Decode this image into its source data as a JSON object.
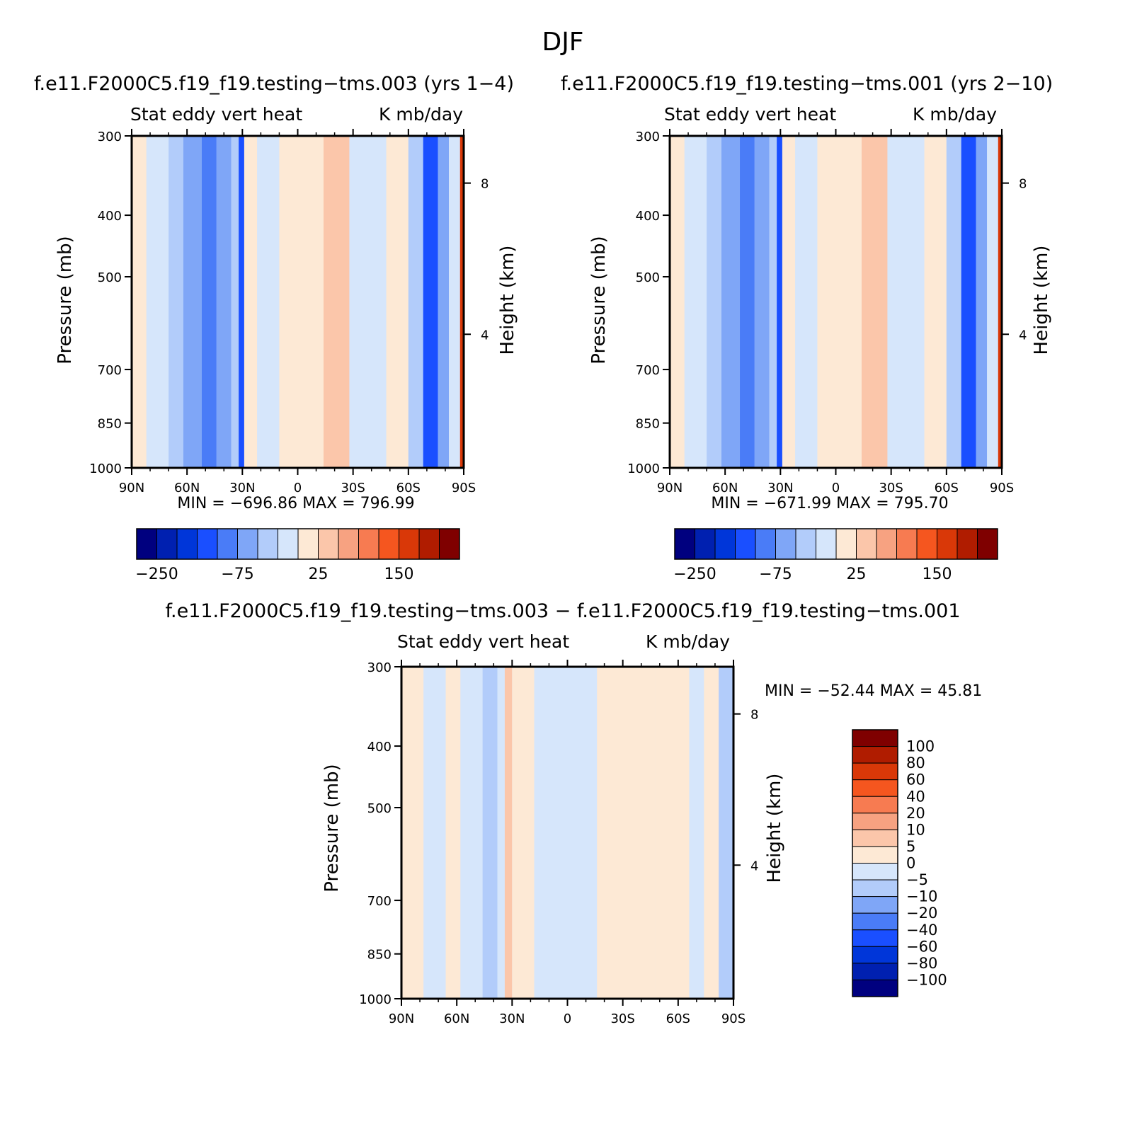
{
  "figure": {
    "title": "DJF"
  },
  "colors": {
    "scale": [
      "#00007f",
      "#0020b0",
      "#0036d9",
      "#1a4fff",
      "#4a7cf7",
      "#7fa6f7",
      "#b2ccfa",
      "#d6e6fb",
      "#fde9d5",
      "#fbc6aa",
      "#f7a281",
      "#f77b51",
      "#f5561f",
      "#d93808",
      "#b01c00",
      "#7f0000"
    ],
    "frame": "#000000",
    "missing": "#ffffff"
  },
  "chart_data": [
    {
      "type": "heatmap",
      "title": "f.e11.F2000C5.f19_f19.testing−tms.003 (yrs 1−4)",
      "subtitle_left": "Stat eddy vert heat",
      "subtitle_right": "K mb/day",
      "ylabel": "Pressure (mb)",
      "ylabel_right": "Height (km)",
      "xticklabels": [
        "90N",
        "60N",
        "30N",
        "0",
        "30S",
        "60S",
        "90S"
      ],
      "yticklabels": [
        "300",
        "400",
        "500",
        "700",
        "850",
        "1000"
      ],
      "yticklabels_right": [
        "8",
        "4"
      ],
      "stats": "MIN = −696.86   MAX = 796.99",
      "colorbar_labels": [
        "−250",
        "−75",
        "25",
        "150"
      ],
      "x_range": [
        90,
        -90
      ],
      "y_range": [
        300,
        1000
      ],
      "y_scale": "log-pressure",
      "structure": [
        {
          "lat_from": 90,
          "lat_to": 82,
          "level": 8
        },
        {
          "lat_from": 82,
          "lat_to": 70,
          "level": 7
        },
        {
          "lat_from": 70,
          "lat_to": 62,
          "level": 6
        },
        {
          "lat_from": 62,
          "lat_to": 52,
          "level": 5
        },
        {
          "lat_from": 52,
          "lat_to": 44,
          "level": 4
        },
        {
          "lat_from": 44,
          "lat_to": 36,
          "level": 5
        },
        {
          "lat_from": 36,
          "lat_to": 32,
          "level": 6
        },
        {
          "lat_from": 32,
          "lat_to": 29,
          "level": 3
        },
        {
          "lat_from": 29,
          "lat_to": 22,
          "level": 8
        },
        {
          "lat_from": 22,
          "lat_to": 10,
          "level": 7
        },
        {
          "lat_from": 10,
          "lat_to": -14,
          "level": 8
        },
        {
          "lat_from": -14,
          "lat_to": -28,
          "level": 9
        },
        {
          "lat_from": -28,
          "lat_to": -48,
          "level": 7
        },
        {
          "lat_from": -48,
          "lat_to": -60,
          "level": 8
        },
        {
          "lat_from": -60,
          "lat_to": -68,
          "level": 6
        },
        {
          "lat_from": -68,
          "lat_to": -76,
          "level": 3
        },
        {
          "lat_from": -76,
          "lat_to": -82,
          "level": 5
        },
        {
          "lat_from": -82,
          "lat_to": -88,
          "level": 7
        },
        {
          "lat_from": -88,
          "lat_to": -90,
          "level": 13
        }
      ]
    },
    {
      "type": "heatmap",
      "title": "f.e11.F2000C5.f19_f19.testing−tms.001 (yrs 2−10)",
      "subtitle_left": "Stat eddy vert heat",
      "subtitle_right": "K mb/day",
      "ylabel": "Pressure (mb)",
      "ylabel_right": "Height (km)",
      "xticklabels": [
        "90N",
        "60N",
        "30N",
        "0",
        "30S",
        "60S",
        "90S"
      ],
      "yticklabels": [
        "300",
        "400",
        "500",
        "700",
        "850",
        "1000"
      ],
      "yticklabels_right": [
        "8",
        "4"
      ],
      "stats": "MIN = −671.99   MAX = 795.70",
      "colorbar_labels": [
        "−250",
        "−75",
        "25",
        "150"
      ],
      "x_range": [
        90,
        -90
      ],
      "y_range": [
        300,
        1000
      ],
      "y_scale": "log-pressure",
      "structure": [
        {
          "lat_from": 90,
          "lat_to": 82,
          "level": 8
        },
        {
          "lat_from": 82,
          "lat_to": 70,
          "level": 7
        },
        {
          "lat_from": 70,
          "lat_to": 62,
          "level": 6
        },
        {
          "lat_from": 62,
          "lat_to": 52,
          "level": 5
        },
        {
          "lat_from": 52,
          "lat_to": 44,
          "level": 4
        },
        {
          "lat_from": 44,
          "lat_to": 36,
          "level": 5
        },
        {
          "lat_from": 36,
          "lat_to": 32,
          "level": 6
        },
        {
          "lat_from": 32,
          "lat_to": 29,
          "level": 3
        },
        {
          "lat_from": 29,
          "lat_to": 22,
          "level": 8
        },
        {
          "lat_from": 22,
          "lat_to": 10,
          "level": 7
        },
        {
          "lat_from": 10,
          "lat_to": -14,
          "level": 8
        },
        {
          "lat_from": -14,
          "lat_to": -28,
          "level": 9
        },
        {
          "lat_from": -28,
          "lat_to": -48,
          "level": 7
        },
        {
          "lat_from": -48,
          "lat_to": -60,
          "level": 8
        },
        {
          "lat_from": -60,
          "lat_to": -68,
          "level": 6
        },
        {
          "lat_from": -68,
          "lat_to": -76,
          "level": 3
        },
        {
          "lat_from": -76,
          "lat_to": -82,
          "level": 5
        },
        {
          "lat_from": -82,
          "lat_to": -88,
          "level": 7
        },
        {
          "lat_from": -88,
          "lat_to": -90,
          "level": 13
        }
      ]
    },
    {
      "type": "heatmap",
      "title": "f.e11.F2000C5.f19_f19.testing−tms.003 − f.e11.F2000C5.f19_f19.testing−tms.001",
      "subtitle_left": "Stat eddy vert heat",
      "subtitle_right": "K mb/day",
      "ylabel": "Pressure (mb)",
      "ylabel_right": "Height (km)",
      "xticklabels": [
        "90N",
        "60N",
        "30N",
        "0",
        "30S",
        "60S",
        "90S"
      ],
      "yticklabels": [
        "300",
        "400",
        "500",
        "700",
        "850",
        "1000"
      ],
      "yticklabels_right": [
        "8",
        "4"
      ],
      "stats": "MIN = −52.44   MAX =   45.81",
      "colorbar_labels": [
        "100",
        "80",
        "60",
        "40",
        "20",
        "10",
        "5",
        "0",
        "−5",
        "−10",
        "−20",
        "−40",
        "−60",
        "−80",
        "−100"
      ],
      "x_range": [
        90,
        -90
      ],
      "y_range": [
        300,
        1000
      ],
      "y_scale": "log-pressure",
      "structure": [
        {
          "lat_from": 90,
          "lat_to": 78,
          "level": 8
        },
        {
          "lat_from": 78,
          "lat_to": 66,
          "level": 7
        },
        {
          "lat_from": 66,
          "lat_to": 58,
          "level": 8
        },
        {
          "lat_from": 58,
          "lat_to": 46,
          "level": 7
        },
        {
          "lat_from": 46,
          "lat_to": 38,
          "level": 6
        },
        {
          "lat_from": 38,
          "lat_to": 34,
          "level": 7
        },
        {
          "lat_from": 34,
          "lat_to": 30,
          "level": 9
        },
        {
          "lat_from": 30,
          "lat_to": 18,
          "level": 8
        },
        {
          "lat_from": 18,
          "lat_to": 6,
          "level": 7
        },
        {
          "lat_from": 6,
          "lat_to": -16,
          "level": 7
        },
        {
          "lat_from": -16,
          "lat_to": -48,
          "level": 8
        },
        {
          "lat_from": -48,
          "lat_to": -66,
          "level": 8
        },
        {
          "lat_from": -66,
          "lat_to": -74,
          "level": 7
        },
        {
          "lat_from": -74,
          "lat_to": -82,
          "level": 8
        },
        {
          "lat_from": -82,
          "lat_to": -90,
          "level": 6
        }
      ]
    }
  ]
}
